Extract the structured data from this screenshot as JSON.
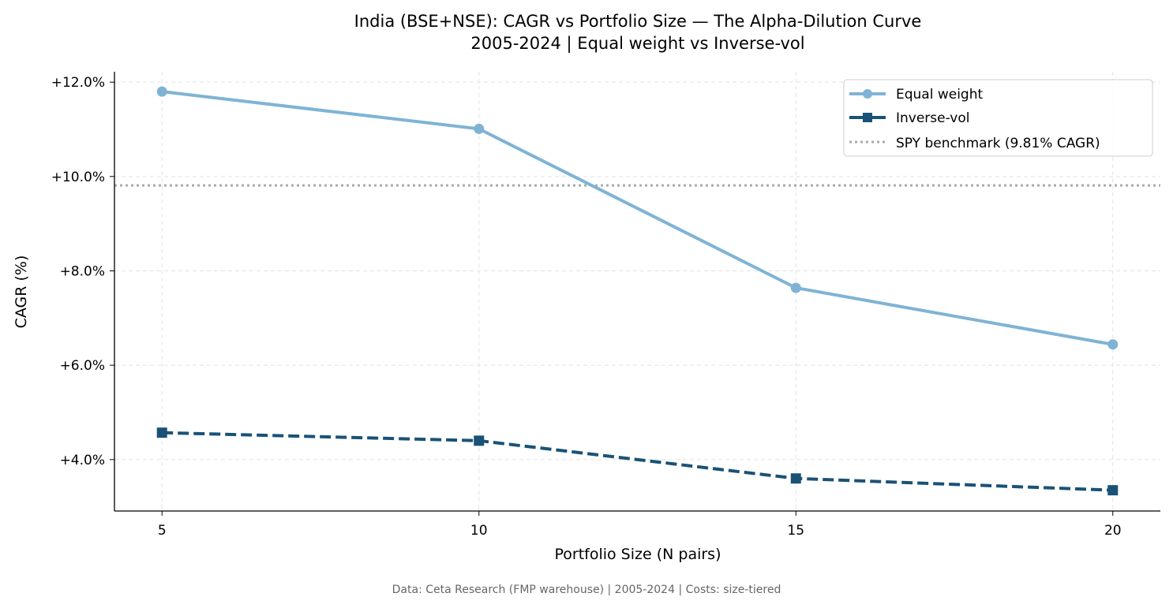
{
  "chart_data": {
    "type": "line",
    "title": "India (BSE+NSE): CAGR vs Portfolio Size — The Alpha-Dilution Curve",
    "subtitle": "2005-2024 | Equal weight vs Inverse-vol",
    "xlabel": "Portfolio Size (N pairs)",
    "ylabel": "CAGR (%)",
    "footnote": "Data: Ceta Research (FMP warehouse) | 2005-2024 | Costs: size-tiered",
    "x": [
      5,
      10,
      15,
      20
    ],
    "xticks": [
      5,
      10,
      15,
      20
    ],
    "xtick_labels": [
      "5",
      "10",
      "15",
      "20"
    ],
    "yticks": [
      4,
      6,
      8,
      10,
      12
    ],
    "ytick_labels": [
      "+4.0%",
      "+6.0%",
      "+8.0%",
      "+10.0%",
      "+12.0%"
    ],
    "xlim": [
      4.25,
      20.75
    ],
    "ylim": [
      2.91,
      12.22
    ],
    "grid": true,
    "legend_position": "top-right",
    "series": [
      {
        "name": "Equal weight",
        "values": [
          11.8,
          11.01,
          7.64,
          6.44
        ],
        "color": "#7fb3d5",
        "marker": "circle",
        "linestyle": "solid"
      },
      {
        "name": "Inverse-vol",
        "values": [
          4.57,
          4.4,
          3.6,
          3.35
        ],
        "color": "#1a5276",
        "marker": "square",
        "linestyle": "dashed"
      }
    ],
    "benchmark": {
      "name": "SPY benchmark (9.81% CAGR)",
      "value": 9.81,
      "color": "#aaaaaa",
      "linestyle": "dotted"
    }
  }
}
